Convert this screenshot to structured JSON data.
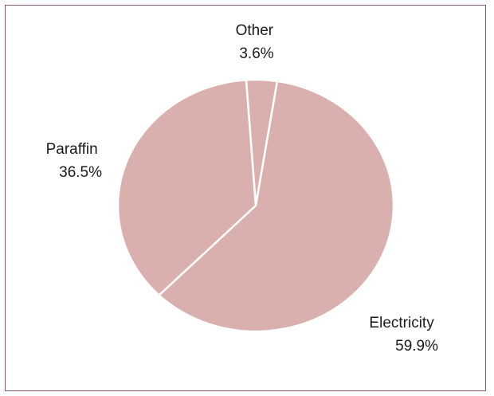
{
  "chart_data": {
    "type": "pie",
    "title": "",
    "slices": [
      {
        "label": "Other",
        "value": 3.6,
        "display": "3.6%",
        "color": "#d9b0ad"
      },
      {
        "label": "Electricity",
        "value": 59.9,
        "display": "59.9%",
        "color": "#d9b0ad"
      },
      {
        "label": "Paraffin",
        "value": 36.5,
        "display": "36.5%",
        "color": "#d9b0ad"
      }
    ],
    "start_angle_deg": -94,
    "direction": "clockwise",
    "slice_edge_color": "#ffffff",
    "frame_color": "#8a5a6a",
    "legend": "none"
  }
}
